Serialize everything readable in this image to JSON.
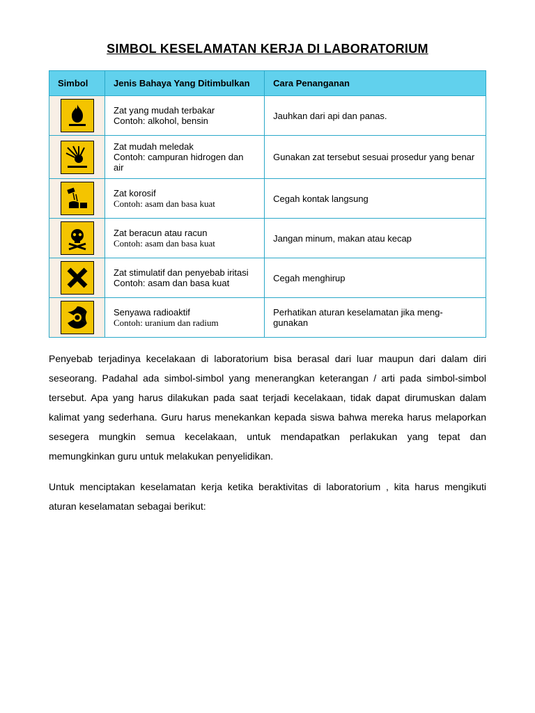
{
  "title": "SIMBOL KESELAMATAN KERJA DI LABORATORIUM",
  "headers": {
    "col1": "Simbol",
    "col2": "Jenis Bahaya Yang Ditimbulkan",
    "col3": "Cara Penanganan"
  },
  "rows": [
    {
      "icon": "flame-icon",
      "desc1": "Zat yang mudah terbakar",
      "desc2": "Contoh: alkohol, bensin",
      "desc2_serif": false,
      "handling": "Jauhkan dari api dan panas."
    },
    {
      "icon": "explosion-icon",
      "desc1": "Zat mudah meledak",
      "desc2": "Contoh: campuran hidrogen dan air",
      "desc2_serif": false,
      "handling": "Gunakan zat tersebut sesuai prosedur yang benar"
    },
    {
      "icon": "corrosive-icon",
      "desc1": "Zat korosif",
      "desc2": "Contoh: asam dan basa kuat",
      "desc2_serif": true,
      "handling": "Cegah kontak langsung"
    },
    {
      "icon": "skull-icon",
      "desc1": "Zat beracun atau racun",
      "desc2": "Contoh: asam dan basa kuat",
      "desc2_serif": true,
      "handling": "Jangan minum, makan atau kecap"
    },
    {
      "icon": "irritant-icon",
      "desc1": "Zat stimulatif dan penyebab iritasi",
      "desc2": "Contoh: asam dan basa kuat",
      "desc2_serif": false,
      "handling": "Cegah menghirup"
    },
    {
      "icon": "radioactive-icon",
      "desc1": "Senyawa radioaktif",
      "desc2": "Contoh: uranium dan radium",
      "desc2_serif": true,
      "handling": "Perhatikan aturan keselamatan jika meng-gunakan"
    }
  ],
  "paragraph1": "Penyebab terjadinya kecelakaan di laboratorium bisa berasal dari luar maupun dari dalam diri seseorang. Padahal ada simbol-simbol yang menerangkan keterangan / arti pada simbol-simbol tersebut. Apa yang harus dilakukan pada saat terjadi kecelakaan, tidak dapat dirumuskan dalam kalimat yang sederhana. Guru harus menekankan kepada siswa bahwa mereka harus melaporkan sesegera mungkin semua kecelakaan, untuk mendapatkan perlakukan yang tepat dan memungkinkan guru untuk melakukan penyelidikan.",
  "paragraph2": "Untuk menciptakan keselamatan kerja ketika beraktivitas di laboratorium , kita harus mengikuti aturan keselamatan sebagai berikut:",
  "colors": {
    "header_bg": "#61d1ed",
    "border": "#2aa8c9",
    "icon_bg": "#f4c400",
    "symcell_bg": "#f8efe6"
  }
}
